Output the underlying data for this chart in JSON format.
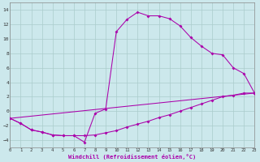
{
  "xlabel": "Windchill (Refroidissement éolien,°C)",
  "bg_color": "#cce8ec",
  "grid_color": "#aacccc",
  "line_color": "#aa00aa",
  "spine_color": "#888888",
  "x_min": 0,
  "x_max": 23,
  "y_min": -5,
  "y_max": 15,
  "yticks": [
    -4,
    -2,
    0,
    2,
    4,
    6,
    8,
    10,
    12,
    14
  ],
  "xticks": [
    0,
    1,
    2,
    3,
    4,
    5,
    6,
    7,
    8,
    9,
    10,
    11,
    12,
    13,
    14,
    15,
    16,
    17,
    18,
    19,
    20,
    21,
    22,
    23
  ],
  "series1_x": [
    0,
    1,
    2,
    3,
    4,
    5,
    6,
    7,
    8,
    9,
    10,
    11,
    12,
    13,
    14,
    15,
    16,
    17,
    18,
    19,
    20,
    21,
    22,
    23
  ],
  "series1_y": [
    -1.0,
    -1.7,
    -2.6,
    -2.9,
    -3.3,
    -3.4,
    -3.4,
    -4.3,
    -0.3,
    0.3,
    11.0,
    12.7,
    13.7,
    13.2,
    13.2,
    12.8,
    11.8,
    10.2,
    9.0,
    8.0,
    7.8,
    6.0,
    5.2,
    2.5
  ],
  "series2_x": [
    0,
    1,
    2,
    3,
    4,
    5,
    6,
    7,
    8,
    9,
    10,
    11,
    12,
    13,
    14,
    15,
    16,
    17,
    18,
    19,
    20,
    21,
    22,
    23
  ],
  "series2_y": [
    -1.0,
    -1.7,
    -2.6,
    -2.9,
    -3.3,
    -3.4,
    -3.4,
    -3.4,
    -3.3,
    -3.0,
    -2.7,
    -2.2,
    -1.8,
    -1.4,
    -0.9,
    -0.5,
    0.0,
    0.5,
    1.0,
    1.5,
    2.0,
    2.2,
    2.5,
    2.5
  ],
  "series3_x": [
    0,
    23
  ],
  "series3_y": [
    -1.0,
    2.5
  ]
}
